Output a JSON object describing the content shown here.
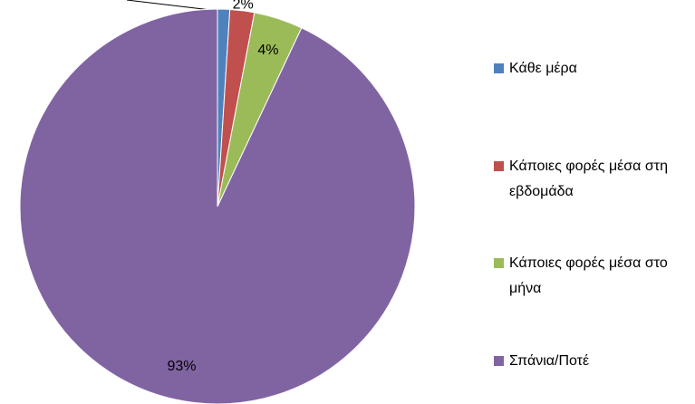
{
  "chart_data": {
    "type": "pie",
    "categories": [
      "Κάθε μέρα",
      "Κάποιες φορές μέσα στη εβδομάδα",
      "Κάποιες φορές μέσα στο μήνα",
      "Σπάνια/Ποτέ"
    ],
    "values": [
      1,
      2,
      4,
      93
    ],
    "value_labels": [
      null,
      "2%",
      "4%",
      "93%"
    ],
    "colors": [
      "#4f81bd",
      "#c0504d",
      "#9bbb59",
      "#8064a2"
    ],
    "legend": "right"
  }
}
